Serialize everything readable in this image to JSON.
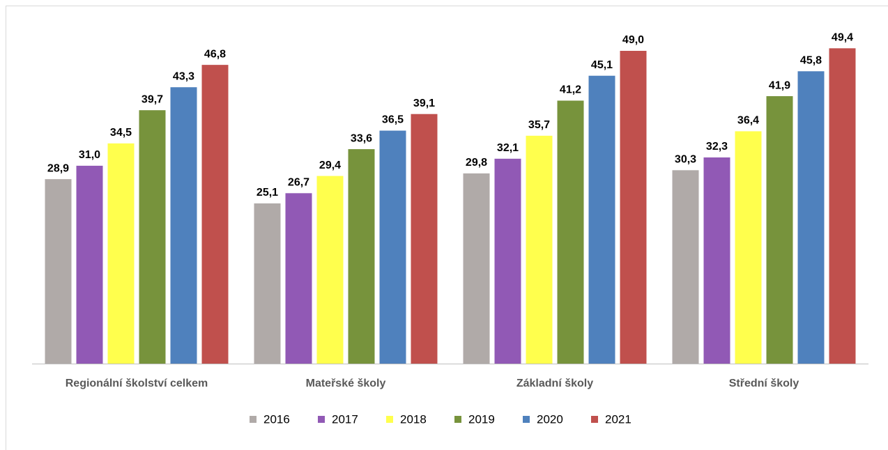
{
  "chart_data": {
    "type": "bar",
    "categories": [
      "Regionální školství celkem",
      "Mateřské školy",
      "Základní školy",
      "Střední školy"
    ],
    "series": [
      {
        "name": "2016",
        "color": "#b0aaa8",
        "values": [
          28.9,
          25.1,
          29.8,
          30.3
        ],
        "value_labels": [
          "28,9",
          "25,1",
          "29,8",
          "30,3"
        ]
      },
      {
        "name": "2017",
        "color": "#9159b5",
        "values": [
          31.0,
          26.7,
          32.1,
          32.3
        ],
        "value_labels": [
          "31,0",
          "26,7",
          "32,1",
          "32,3"
        ]
      },
      {
        "name": "2018",
        "color": "#ffff4d",
        "values": [
          34.5,
          29.4,
          35.7,
          36.4
        ],
        "value_labels": [
          "34,5",
          "29,4",
          "35,7",
          "36,4"
        ]
      },
      {
        "name": "2019",
        "color": "#77933c",
        "values": [
          39.7,
          33.6,
          41.2,
          41.9
        ],
        "value_labels": [
          "39,7",
          "33,6",
          "41,2",
          "41,9"
        ]
      },
      {
        "name": "2020",
        "color": "#4f81bd",
        "values": [
          43.3,
          36.5,
          45.1,
          45.8
        ],
        "value_labels": [
          "43,3",
          "36,5",
          "45,1",
          "45,8"
        ]
      },
      {
        "name": "2021",
        "color": "#c0504d",
        "values": [
          46.8,
          39.1,
          49.0,
          49.4
        ],
        "value_labels": [
          "46,8",
          "39,1",
          "49,0",
          "49,4"
        ]
      }
    ],
    "ylim": [
      0,
      55
    ],
    "grid": false,
    "legend": "bottom"
  }
}
